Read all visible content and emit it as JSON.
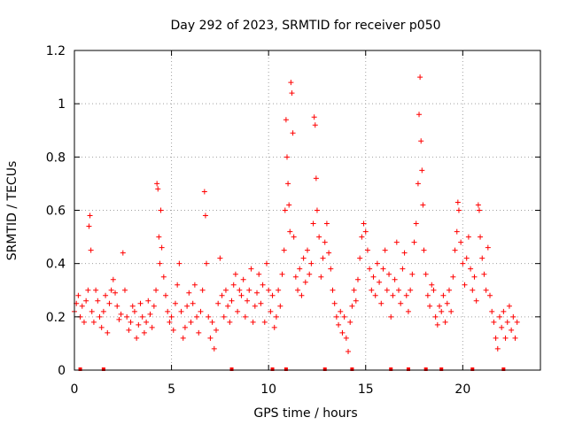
{
  "chart_data": {
    "type": "scatter",
    "title": "Day 292 of 2023, SRMTID for receiver p050",
    "xlabel": "GPS time / hours",
    "ylabel": "SRMTID / TECUs",
    "xlim": [
      0,
      24
    ],
    "ylim": [
      0,
      1.2
    ],
    "xticks": [
      "0",
      "5",
      "10",
      "15",
      "20"
    ],
    "xtick_values": [
      0,
      5,
      10,
      15,
      20
    ],
    "yticks": [
      "0",
      "0.2",
      "0.4",
      "0.6",
      "0.8",
      "1",
      "1.2"
    ],
    "ytick_values": [
      0,
      0.2,
      0.4,
      0.6,
      0.8,
      1.0,
      1.2
    ],
    "grid": true,
    "marker": "plus",
    "color": "#ff0000",
    "baseline_flags_x": [
      0.3,
      1.5,
      8.1,
      10.2,
      10.9,
      12.9,
      14.3,
      16.3,
      17.2,
      18.1,
      18.9,
      20.5,
      22.1
    ],
    "series": [
      {
        "name": "SRMTID",
        "points": [
          [
            0.0,
            0.22
          ],
          [
            0.1,
            0.25
          ],
          [
            0.2,
            0.28
          ],
          [
            0.3,
            0.2
          ],
          [
            0.4,
            0.24
          ],
          [
            0.5,
            0.18
          ],
          [
            0.6,
            0.26
          ],
          [
            0.7,
            0.3
          ],
          [
            0.75,
            0.54
          ],
          [
            0.8,
            0.58
          ],
          [
            0.85,
            0.45
          ],
          [
            0.9,
            0.22
          ],
          [
            1.0,
            0.18
          ],
          [
            1.1,
            0.3
          ],
          [
            1.2,
            0.26
          ],
          [
            1.3,
            0.2
          ],
          [
            1.4,
            0.16
          ],
          [
            1.5,
            0.22
          ],
          [
            1.6,
            0.28
          ],
          [
            1.7,
            0.14
          ],
          [
            1.8,
            0.25
          ],
          [
            1.9,
            0.3
          ],
          [
            2.0,
            0.34
          ],
          [
            2.1,
            0.29
          ],
          [
            2.2,
            0.24
          ],
          [
            2.3,
            0.19
          ],
          [
            2.4,
            0.21
          ],
          [
            2.5,
            0.44
          ],
          [
            2.6,
            0.3
          ],
          [
            2.7,
            0.2
          ],
          [
            2.8,
            0.15
          ],
          [
            2.9,
            0.18
          ],
          [
            3.0,
            0.24
          ],
          [
            3.1,
            0.22
          ],
          [
            3.2,
            0.12
          ],
          [
            3.3,
            0.17
          ],
          [
            3.4,
            0.25
          ],
          [
            3.5,
            0.2
          ],
          [
            3.6,
            0.14
          ],
          [
            3.7,
            0.18
          ],
          [
            3.8,
            0.26
          ],
          [
            3.9,
            0.21
          ],
          [
            4.0,
            0.16
          ],
          [
            4.1,
            0.24
          ],
          [
            4.2,
            0.3
          ],
          [
            4.25,
            0.7
          ],
          [
            4.3,
            0.68
          ],
          [
            4.35,
            0.5
          ],
          [
            4.4,
            0.4
          ],
          [
            4.45,
            0.6
          ],
          [
            4.5,
            0.46
          ],
          [
            4.6,
            0.35
          ],
          [
            4.7,
            0.28
          ],
          [
            4.8,
            0.22
          ],
          [
            4.9,
            0.18
          ],
          [
            5.0,
            0.2
          ],
          [
            5.1,
            0.15
          ],
          [
            5.2,
            0.25
          ],
          [
            5.3,
            0.32
          ],
          [
            5.4,
            0.4
          ],
          [
            5.5,
            0.22
          ],
          [
            5.6,
            0.12
          ],
          [
            5.7,
            0.16
          ],
          [
            5.8,
            0.24
          ],
          [
            5.9,
            0.29
          ],
          [
            6.0,
            0.18
          ],
          [
            6.1,
            0.25
          ],
          [
            6.2,
            0.32
          ],
          [
            6.3,
            0.2
          ],
          [
            6.4,
            0.14
          ],
          [
            6.5,
            0.22
          ],
          [
            6.6,
            0.3
          ],
          [
            6.7,
            0.67
          ],
          [
            6.75,
            0.58
          ],
          [
            6.8,
            0.4
          ],
          [
            6.9,
            0.2
          ],
          [
            7.0,
            0.12
          ],
          [
            7.1,
            0.18
          ],
          [
            7.2,
            0.08
          ],
          [
            7.3,
            0.15
          ],
          [
            7.4,
            0.25
          ],
          [
            7.5,
            0.42
          ],
          [
            7.6,
            0.28
          ],
          [
            7.7,
            0.2
          ],
          [
            7.8,
            0.3
          ],
          [
            7.9,
            0.24
          ],
          [
            8.0,
            0.18
          ],
          [
            8.1,
            0.26
          ],
          [
            8.2,
            0.32
          ],
          [
            8.3,
            0.36
          ],
          [
            8.4,
            0.22
          ],
          [
            8.5,
            0.3
          ],
          [
            8.6,
            0.28
          ],
          [
            8.7,
            0.34
          ],
          [
            8.8,
            0.2
          ],
          [
            8.9,
            0.26
          ],
          [
            9.0,
            0.3
          ],
          [
            9.1,
            0.38
          ],
          [
            9.2,
            0.18
          ],
          [
            9.3,
            0.24
          ],
          [
            9.4,
            0.29
          ],
          [
            9.5,
            0.36
          ],
          [
            9.6,
            0.25
          ],
          [
            9.7,
            0.32
          ],
          [
            9.8,
            0.18
          ],
          [
            9.9,
            0.4
          ],
          [
            10.0,
            0.3
          ],
          [
            10.1,
            0.22
          ],
          [
            10.2,
            0.28
          ],
          [
            10.3,
            0.16
          ],
          [
            10.4,
            0.2
          ],
          [
            10.5,
            0.3
          ],
          [
            10.6,
            0.24
          ],
          [
            10.7,
            0.36
          ],
          [
            10.8,
            0.45
          ],
          [
            10.85,
            0.6
          ],
          [
            10.9,
            0.94
          ],
          [
            10.95,
            0.8
          ],
          [
            11.0,
            0.7
          ],
          [
            11.05,
            0.62
          ],
          [
            11.1,
            0.52
          ],
          [
            11.15,
            1.08
          ],
          [
            11.2,
            1.04
          ],
          [
            11.25,
            0.89
          ],
          [
            11.3,
            0.5
          ],
          [
            11.4,
            0.35
          ],
          [
            11.5,
            0.3
          ],
          [
            11.6,
            0.38
          ],
          [
            11.7,
            0.28
          ],
          [
            11.8,
            0.42
          ],
          [
            11.9,
            0.33
          ],
          [
            12.0,
            0.45
          ],
          [
            12.1,
            0.36
          ],
          [
            12.2,
            0.4
          ],
          [
            12.3,
            0.55
          ],
          [
            12.35,
            0.95
          ],
          [
            12.4,
            0.92
          ],
          [
            12.45,
            0.72
          ],
          [
            12.5,
            0.6
          ],
          [
            12.6,
            0.5
          ],
          [
            12.7,
            0.35
          ],
          [
            12.8,
            0.42
          ],
          [
            12.9,
            0.48
          ],
          [
            13.0,
            0.55
          ],
          [
            13.1,
            0.44
          ],
          [
            13.2,
            0.38
          ],
          [
            13.3,
            0.3
          ],
          [
            13.4,
            0.25
          ],
          [
            13.5,
            0.2
          ],
          [
            13.6,
            0.17
          ],
          [
            13.7,
            0.22
          ],
          [
            13.8,
            0.14
          ],
          [
            13.9,
            0.2
          ],
          [
            14.0,
            0.12
          ],
          [
            14.1,
            0.07
          ],
          [
            14.2,
            0.18
          ],
          [
            14.3,
            0.24
          ],
          [
            14.4,
            0.3
          ],
          [
            14.5,
            0.26
          ],
          [
            14.6,
            0.34
          ],
          [
            14.7,
            0.42
          ],
          [
            14.8,
            0.5
          ],
          [
            14.9,
            0.55
          ],
          [
            15.0,
            0.52
          ],
          [
            15.1,
            0.45
          ],
          [
            15.2,
            0.38
          ],
          [
            15.3,
            0.3
          ],
          [
            15.4,
            0.35
          ],
          [
            15.5,
            0.28
          ],
          [
            15.6,
            0.4
          ],
          [
            15.7,
            0.33
          ],
          [
            15.8,
            0.25
          ],
          [
            15.9,
            0.38
          ],
          [
            16.0,
            0.45
          ],
          [
            16.1,
            0.3
          ],
          [
            16.2,
            0.36
          ],
          [
            16.3,
            0.2
          ],
          [
            16.4,
            0.28
          ],
          [
            16.5,
            0.34
          ],
          [
            16.6,
            0.48
          ],
          [
            16.7,
            0.3
          ],
          [
            16.8,
            0.25
          ],
          [
            16.9,
            0.38
          ],
          [
            17.0,
            0.44
          ],
          [
            17.1,
            0.28
          ],
          [
            17.2,
            0.22
          ],
          [
            17.3,
            0.3
          ],
          [
            17.4,
            0.36
          ],
          [
            17.5,
            0.48
          ],
          [
            17.6,
            0.55
          ],
          [
            17.7,
            0.7
          ],
          [
            17.75,
            0.96
          ],
          [
            17.8,
            1.1
          ],
          [
            17.85,
            0.86
          ],
          [
            17.9,
            0.75
          ],
          [
            17.95,
            0.62
          ],
          [
            18.0,
            0.45
          ],
          [
            18.1,
            0.36
          ],
          [
            18.2,
            0.28
          ],
          [
            18.3,
            0.24
          ],
          [
            18.4,
            0.32
          ],
          [
            18.5,
            0.3
          ],
          [
            18.6,
            0.2
          ],
          [
            18.7,
            0.17
          ],
          [
            18.8,
            0.24
          ],
          [
            18.9,
            0.22
          ],
          [
            19.0,
            0.28
          ],
          [
            19.1,
            0.18
          ],
          [
            19.2,
            0.25
          ],
          [
            19.3,
            0.3
          ],
          [
            19.4,
            0.22
          ],
          [
            19.5,
            0.35
          ],
          [
            19.6,
            0.45
          ],
          [
            19.7,
            0.52
          ],
          [
            19.75,
            0.63
          ],
          [
            19.8,
            0.6
          ],
          [
            19.9,
            0.48
          ],
          [
            20.0,
            0.4
          ],
          [
            20.1,
            0.32
          ],
          [
            20.2,
            0.42
          ],
          [
            20.3,
            0.5
          ],
          [
            20.4,
            0.38
          ],
          [
            20.5,
            0.3
          ],
          [
            20.6,
            0.35
          ],
          [
            20.7,
            0.26
          ],
          [
            20.8,
            0.62
          ],
          [
            20.85,
            0.6
          ],
          [
            20.9,
            0.5
          ],
          [
            21.0,
            0.42
          ],
          [
            21.1,
            0.36
          ],
          [
            21.2,
            0.3
          ],
          [
            21.3,
            0.46
          ],
          [
            21.4,
            0.28
          ],
          [
            21.5,
            0.22
          ],
          [
            21.6,
            0.18
          ],
          [
            21.7,
            0.12
          ],
          [
            21.8,
            0.08
          ],
          [
            21.9,
            0.2
          ],
          [
            22.0,
            0.16
          ],
          [
            22.1,
            0.22
          ],
          [
            22.2,
            0.12
          ],
          [
            22.3,
            0.18
          ],
          [
            22.4,
            0.24
          ],
          [
            22.5,
            0.15
          ],
          [
            22.6,
            0.2
          ],
          [
            22.7,
            0.12
          ],
          [
            22.8,
            0.18
          ]
        ]
      }
    ]
  }
}
